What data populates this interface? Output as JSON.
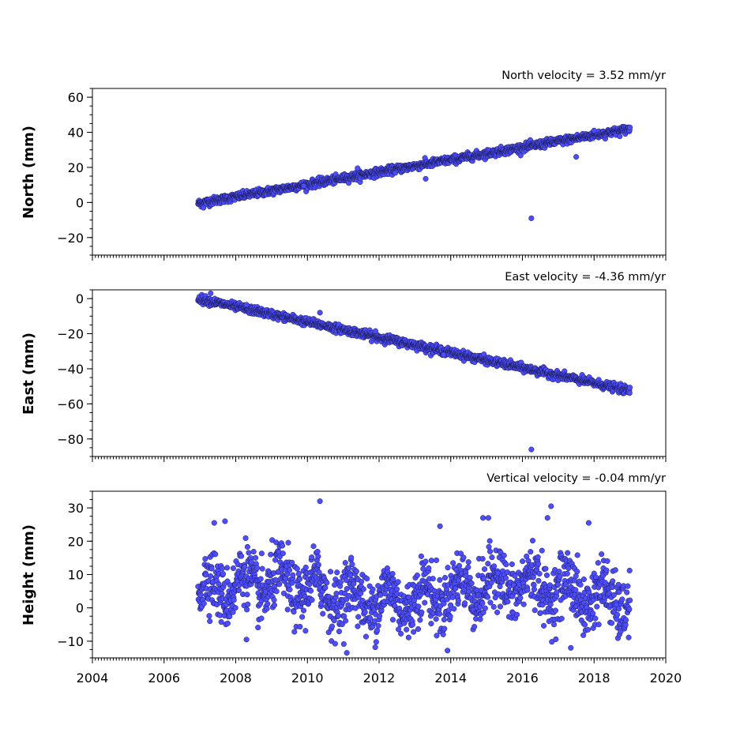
{
  "chart_data": [
    {
      "type": "scatter",
      "title": "North velocity = 3.52 mm/yr",
      "ylabel": "North (mm)",
      "xlim": [
        2004,
        2020
      ],
      "ylim": [
        -30,
        65
      ],
      "yticks": [
        -20,
        0,
        20,
        40,
        60
      ],
      "model": {
        "start": 2006.95,
        "end": 2019.0,
        "y0": -0.5,
        "rate": 3.52,
        "noise": 1.1
      },
      "outliers": [
        [
          2016.25,
          -9
        ],
        [
          2018.0,
          41
        ],
        [
          2011.4,
          19.5
        ],
        [
          2009.9,
          9.5
        ],
        [
          2013.3,
          13.5
        ],
        [
          2017.5,
          26
        ],
        [
          2007.1,
          -3
        ]
      ],
      "color": "#4d4dff"
    },
    {
      "type": "scatter",
      "title": "East velocity = -4.36 mm/yr",
      "ylabel": "East (mm)",
      "xlim": [
        2004,
        2020
      ],
      "ylim": [
        -90,
        5
      ],
      "yticks": [
        -80,
        -60,
        -40,
        -20,
        0
      ],
      "model": {
        "start": 2006.95,
        "end": 2019.0,
        "y0": 0,
        "rate": -4.36,
        "noise": 1.1
      },
      "outliers": [
        [
          2016.25,
          -86
        ],
        [
          2007.3,
          3
        ],
        [
          2010.35,
          -8
        ],
        [
          2011.9,
          -18.5
        ],
        [
          2013.8,
          -32
        ],
        [
          2008.3,
          -3.5
        ]
      ],
      "color": "#4d4dff"
    },
    {
      "type": "scatter",
      "title": "Vertical velocity = -0.04 mm/yr",
      "ylabel": "Height (mm)",
      "xlabel": "",
      "xlim": [
        2004,
        2020
      ],
      "ylim": [
        -15,
        35
      ],
      "yticks": [
        -10,
        0,
        10,
        20,
        30
      ],
      "xticks": [
        2004,
        2006,
        2008,
        2010,
        2012,
        2014,
        2016,
        2018,
        2020
      ],
      "model": {
        "start": 2006.95,
        "end": 2019.0,
        "y0": 5,
        "rate": -0.04,
        "noise": 4.5
      },
      "outliers": [
        [
          2010.35,
          32
        ],
        [
          2016.8,
          30.5
        ],
        [
          2007.4,
          25.5
        ],
        [
          2007.7,
          26
        ],
        [
          2014.9,
          27
        ],
        [
          2015.05,
          27
        ],
        [
          2017.85,
          25.5
        ],
        [
          2011.1,
          -13.5
        ],
        [
          2017.35,
          -12
        ],
        [
          2016.7,
          27
        ],
        [
          2013.7,
          24.5
        ],
        [
          2008.3,
          -9.5
        ]
      ],
      "color": "#4d4dff"
    }
  ]
}
